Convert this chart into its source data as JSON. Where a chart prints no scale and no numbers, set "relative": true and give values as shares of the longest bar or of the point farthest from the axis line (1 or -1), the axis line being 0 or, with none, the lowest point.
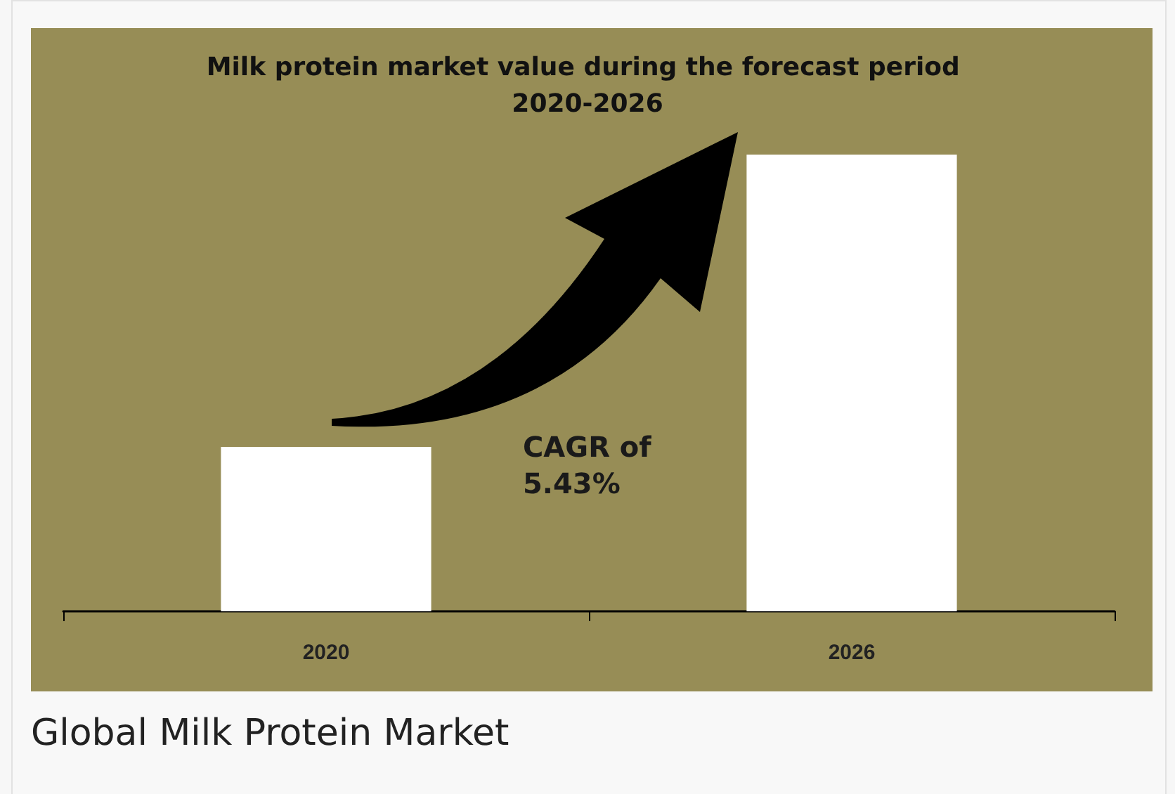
{
  "chart_data": {
    "type": "bar",
    "title": "Milk protein market value during the forecast period 2020-2026",
    "categories": [
      "2020",
      "2026"
    ],
    "values": [
      0.36,
      1
    ],
    "color": "#ffffff",
    "relative": true,
    "annotations": [
      "CAGR of 5.43%",
      "Global Milk Protein Market"
    ]
  }
}
